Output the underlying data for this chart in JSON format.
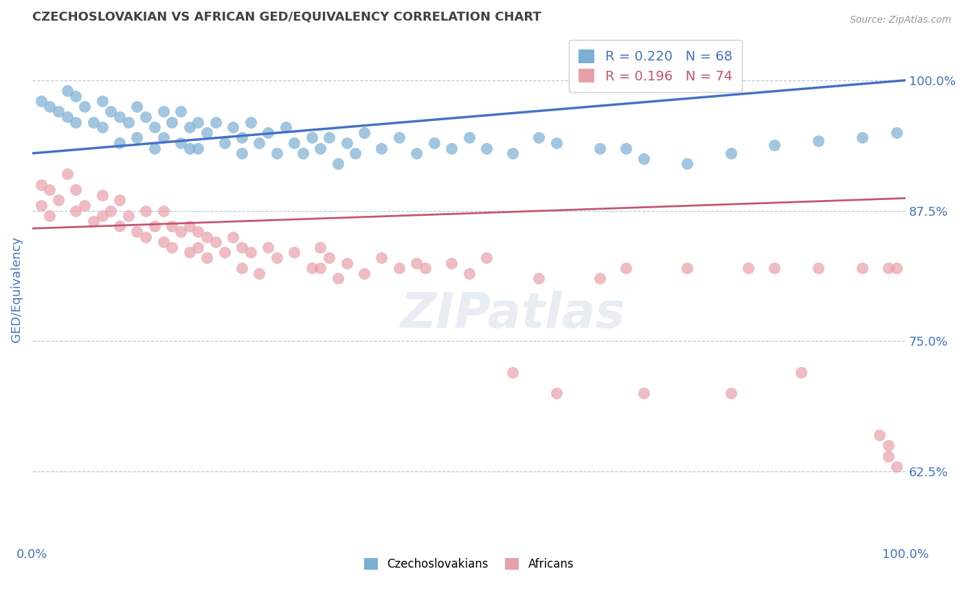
{
  "title": "CZECHOSLOVAKIAN VS AFRICAN GED/EQUIVALENCY CORRELATION CHART",
  "source_text": "Source: ZipAtlas.com",
  "ylabel": "GED/Equivalency",
  "x_min": 0.0,
  "x_max": 1.0,
  "y_min": 0.555,
  "y_max": 1.045,
  "y_ticks": [
    0.625,
    0.75,
    0.875,
    1.0
  ],
  "y_tick_labels": [
    "62.5%",
    "75.0%",
    "87.5%",
    "100.0%"
  ],
  "x_ticks": [
    0.0,
    1.0
  ],
  "x_tick_labels": [
    "0.0%",
    "100.0%"
  ],
  "legend_labels": [
    "Czechoslovakians",
    "Africans"
  ],
  "blue_R": 0.22,
  "blue_N": 68,
  "pink_R": 0.196,
  "pink_N": 74,
  "blue_color": "#7bafd4",
  "pink_color": "#e8a0a8",
  "blue_line_color": "#4472c4",
  "pink_line_color": "#c2566e",
  "title_color": "#434343",
  "axis_label_color": "#4472c4",
  "grid_color": "#b8c8d8",
  "background_color": "#ffffff",
  "blue_line_y0": 0.93,
  "blue_line_y1": 1.0,
  "pink_line_y0": 0.858,
  "pink_line_y1": 0.887,
  "blue_scatter_x": [
    0.01,
    0.02,
    0.03,
    0.04,
    0.04,
    0.05,
    0.05,
    0.06,
    0.07,
    0.08,
    0.08,
    0.09,
    0.1,
    0.1,
    0.11,
    0.12,
    0.12,
    0.13,
    0.14,
    0.14,
    0.15,
    0.15,
    0.16,
    0.17,
    0.17,
    0.18,
    0.18,
    0.19,
    0.19,
    0.2,
    0.21,
    0.22,
    0.23,
    0.24,
    0.24,
    0.25,
    0.26,
    0.27,
    0.28,
    0.29,
    0.3,
    0.31,
    0.32,
    0.33,
    0.34,
    0.35,
    0.36,
    0.37,
    0.38,
    0.4,
    0.42,
    0.44,
    0.46,
    0.48,
    0.5,
    0.52,
    0.55,
    0.58,
    0.6,
    0.65,
    0.68,
    0.7,
    0.75,
    0.8,
    0.85,
    0.9,
    0.95,
    0.99
  ],
  "blue_scatter_y": [
    0.98,
    0.975,
    0.97,
    0.99,
    0.965,
    0.985,
    0.96,
    0.975,
    0.96,
    0.98,
    0.955,
    0.97,
    0.965,
    0.94,
    0.96,
    0.975,
    0.945,
    0.965,
    0.955,
    0.935,
    0.97,
    0.945,
    0.96,
    0.97,
    0.94,
    0.955,
    0.935,
    0.96,
    0.935,
    0.95,
    0.96,
    0.94,
    0.955,
    0.945,
    0.93,
    0.96,
    0.94,
    0.95,
    0.93,
    0.955,
    0.94,
    0.93,
    0.945,
    0.935,
    0.945,
    0.92,
    0.94,
    0.93,
    0.95,
    0.935,
    0.945,
    0.93,
    0.94,
    0.935,
    0.945,
    0.935,
    0.93,
    0.945,
    0.94,
    0.935,
    0.935,
    0.925,
    0.92,
    0.93,
    0.938,
    0.942,
    0.945,
    0.95
  ],
  "pink_scatter_x": [
    0.01,
    0.01,
    0.02,
    0.02,
    0.03,
    0.04,
    0.05,
    0.05,
    0.06,
    0.07,
    0.08,
    0.08,
    0.09,
    0.1,
    0.1,
    0.11,
    0.12,
    0.13,
    0.13,
    0.14,
    0.15,
    0.15,
    0.16,
    0.16,
    0.17,
    0.18,
    0.18,
    0.19,
    0.19,
    0.2,
    0.2,
    0.21,
    0.22,
    0.23,
    0.24,
    0.24,
    0.25,
    0.26,
    0.27,
    0.28,
    0.3,
    0.32,
    0.33,
    0.33,
    0.34,
    0.35,
    0.36,
    0.38,
    0.4,
    0.42,
    0.44,
    0.45,
    0.48,
    0.5,
    0.52,
    0.55,
    0.58,
    0.6,
    0.65,
    0.68,
    0.7,
    0.75,
    0.8,
    0.82,
    0.85,
    0.88,
    0.9,
    0.95,
    0.98,
    0.99,
    0.97,
    0.98,
    0.98,
    0.99
  ],
  "pink_scatter_y": [
    0.9,
    0.88,
    0.895,
    0.87,
    0.885,
    0.91,
    0.875,
    0.895,
    0.88,
    0.865,
    0.89,
    0.87,
    0.875,
    0.86,
    0.885,
    0.87,
    0.855,
    0.875,
    0.85,
    0.86,
    0.875,
    0.845,
    0.86,
    0.84,
    0.855,
    0.86,
    0.835,
    0.855,
    0.84,
    0.85,
    0.83,
    0.845,
    0.835,
    0.85,
    0.84,
    0.82,
    0.835,
    0.815,
    0.84,
    0.83,
    0.835,
    0.82,
    0.84,
    0.82,
    0.83,
    0.81,
    0.825,
    0.815,
    0.83,
    0.82,
    0.825,
    0.82,
    0.825,
    0.815,
    0.83,
    0.72,
    0.81,
    0.7,
    0.81,
    0.82,
    0.7,
    0.82,
    0.7,
    0.82,
    0.82,
    0.72,
    0.82,
    0.82,
    0.82,
    0.82,
    0.66,
    0.65,
    0.64,
    0.63
  ]
}
